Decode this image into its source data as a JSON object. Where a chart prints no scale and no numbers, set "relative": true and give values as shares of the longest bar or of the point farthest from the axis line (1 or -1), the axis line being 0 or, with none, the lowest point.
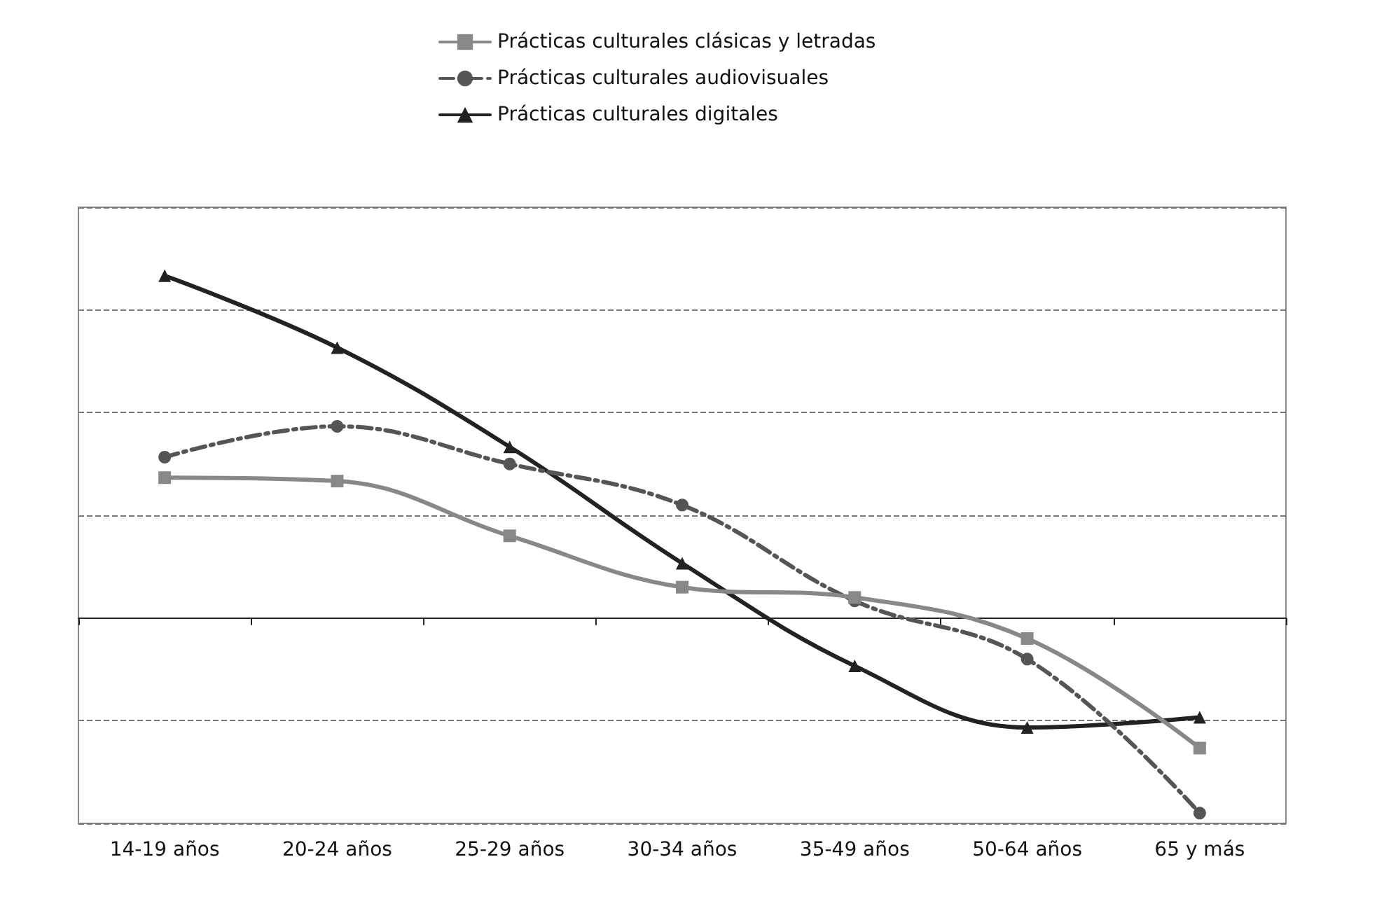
{
  "chart_data": {
    "type": "line",
    "relative": true,
    "grid": "y",
    "legend": "top",
    "categories": [
      "14-19 años",
      "20-24 años",
      "25-29 años",
      "30-34 años",
      "35-49 años",
      "50-64 años",
      "65 y más"
    ],
    "series": [
      {
        "name": "Prácticas culturales clásicas y letradas",
        "color": "#888888",
        "marker": "square",
        "line_style": "solid",
        "values": [
          0.41,
          0.4,
          0.24,
          0.09,
          0.06,
          -0.06,
          -0.38
        ]
      },
      {
        "name": "Prácticas culturales audiovisuales",
        "color": "#555555",
        "marker": "circle",
        "line_style": "dashed",
        "values": [
          0.47,
          0.56,
          0.45,
          0.33,
          0.05,
          -0.12,
          -0.57
        ]
      },
      {
        "name": "Prácticas culturales digitales",
        "color": "#222222",
        "marker": "triangle",
        "line_style": "solid",
        "values": [
          1,
          0.79,
          0.5,
          0.16,
          -0.14,
          -0.32,
          -0.29
        ]
      }
    ]
  }
}
